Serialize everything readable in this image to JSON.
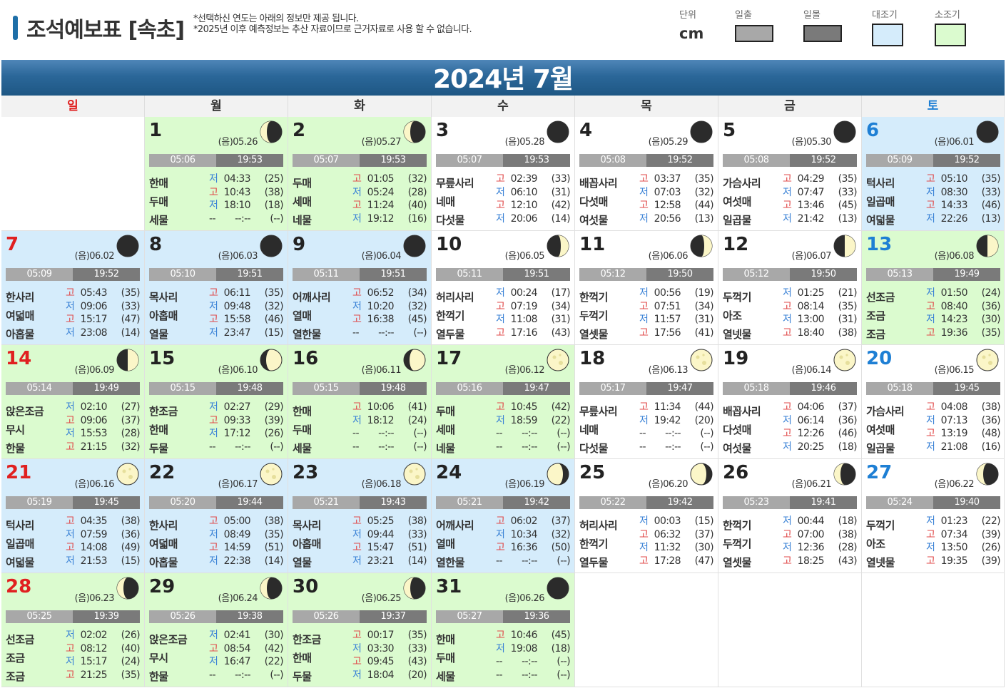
{
  "header": {
    "title": "조석예보표 [속초]",
    "notes": [
      "*선택하신 연도는 아래의 정보만 제공 됩니다.",
      "*2025년 이후 예측정보는 추산 자료이므로 근거자료로 사용 할 수 없습니다."
    ],
    "unit_label": "단위",
    "unit_value": "cm",
    "legend": {
      "sunrise": "일출",
      "sunset": "일몰",
      "spring": "대조기",
      "neap": "소조기"
    },
    "colors": {
      "sunrise": "#a8a8a8",
      "sunset": "#7a7a7a",
      "spring": "#d5ecfb",
      "neap": "#dbfbcf"
    }
  },
  "month": "2024년 7월",
  "weekdays": [
    "일",
    "월",
    "화",
    "수",
    "목",
    "금",
    "토"
  ],
  "days": [
    {
      "d": "1",
      "lunar": "(음)05.26",
      "rise": "05:06",
      "set": "19:53",
      "names": [
        "한매",
        "두매",
        "세물"
      ],
      "bg": "green",
      "moon": "thirdq",
      "tides": [
        [
          "저",
          "04:33",
          "(25)"
        ],
        [
          "고",
          "10:43",
          "(38)"
        ],
        [
          "저",
          "18:10",
          "(18)"
        ],
        [
          "--",
          "--:--",
          "(--)"
        ]
      ]
    },
    {
      "d": "2",
      "lunar": "(음)05.27",
      "rise": "05:07",
      "set": "19:53",
      "names": [
        "두매",
        "세매",
        "네물"
      ],
      "bg": "green",
      "moon": "thirdq",
      "tides": [
        [
          "고",
          "01:05",
          "(32)"
        ],
        [
          "저",
          "05:24",
          "(28)"
        ],
        [
          "고",
          "11:24",
          "(40)"
        ],
        [
          "저",
          "19:12",
          "(16)"
        ]
      ]
    },
    {
      "d": "3",
      "lunar": "(음)05.28",
      "rise": "05:07",
      "set": "19:53",
      "names": [
        "무릎사리",
        "네매",
        "다섯물"
      ],
      "bg": "white",
      "moon": "new",
      "tides": [
        [
          "고",
          "02:39",
          "(33)"
        ],
        [
          "저",
          "06:10",
          "(31)"
        ],
        [
          "고",
          "12:10",
          "(42)"
        ],
        [
          "저",
          "20:06",
          "(14)"
        ]
      ]
    },
    {
      "d": "4",
      "lunar": "(음)05.29",
      "rise": "05:08",
      "set": "19:52",
      "names": [
        "배꼽사리",
        "다섯매",
        "여섯물"
      ],
      "bg": "white",
      "moon": "new",
      "tides": [
        [
          "고",
          "03:37",
          "(35)"
        ],
        [
          "저",
          "07:03",
          "(32)"
        ],
        [
          "고",
          "12:58",
          "(44)"
        ],
        [
          "저",
          "20:56",
          "(13)"
        ]
      ]
    },
    {
      "d": "5",
      "lunar": "(음)05.30",
      "rise": "05:08",
      "set": "19:52",
      "names": [
        "가슴사리",
        "여섯매",
        "일곱물"
      ],
      "bg": "white",
      "moon": "new",
      "tides": [
        [
          "고",
          "04:29",
          "(35)"
        ],
        [
          "저",
          "07:47",
          "(33)"
        ],
        [
          "고",
          "13:46",
          "(45)"
        ],
        [
          "저",
          "21:42",
          "(13)"
        ]
      ]
    },
    {
      "d": "6",
      "lunar": "(음)06.01",
      "rise": "05:09",
      "set": "19:52",
      "names": [
        "턱사리",
        "일곱매",
        "여덟물"
      ],
      "bg": "blue",
      "moon": "new",
      "tides": [
        [
          "고",
          "05:10",
          "(35)"
        ],
        [
          "저",
          "08:30",
          "(33)"
        ],
        [
          "고",
          "14:33",
          "(46)"
        ],
        [
          "저",
          "22:26",
          "(13)"
        ]
      ]
    },
    {
      "d": "7",
      "lunar": "(음)06.02",
      "rise": "05:09",
      "set": "19:52",
      "names": [
        "한사리",
        "여덟매",
        "아홉물"
      ],
      "bg": "blue",
      "moon": "new",
      "tides": [
        [
          "고",
          "05:43",
          "(35)"
        ],
        [
          "저",
          "09:06",
          "(33)"
        ],
        [
          "고",
          "15:17",
          "(47)"
        ],
        [
          "저",
          "23:08",
          "(14)"
        ]
      ]
    },
    {
      "d": "8",
      "lunar": "(음)06.03",
      "rise": "05:10",
      "set": "19:51",
      "names": [
        "목사리",
        "아홉매",
        "열물"
      ],
      "bg": "blue",
      "moon": "new",
      "tides": [
        [
          "고",
          "06:11",
          "(35)"
        ],
        [
          "저",
          "09:48",
          "(32)"
        ],
        [
          "고",
          "15:58",
          "(46)"
        ],
        [
          "저",
          "23:47",
          "(15)"
        ]
      ]
    },
    {
      "d": "9",
      "lunar": "(음)06.04",
      "rise": "05:11",
      "set": "19:51",
      "names": [
        "어깨사리",
        "열매",
        "열한물"
      ],
      "bg": "blue",
      "moon": "new",
      "tides": [
        [
          "고",
          "06:52",
          "(34)"
        ],
        [
          "저",
          "10:20",
          "(32)"
        ],
        [
          "고",
          "16:38",
          "(45)"
        ],
        [
          "--",
          "--:--",
          "(--)"
        ]
      ]
    },
    {
      "d": "10",
      "lunar": "(음)06.05",
      "rise": "05:11",
      "set": "19:51",
      "names": [
        "허리사리",
        "한꺽기",
        "열두물"
      ],
      "bg": "white",
      "moon": "cres",
      "tides": [
        [
          "저",
          "00:24",
          "(17)"
        ],
        [
          "고",
          "07:19",
          "(34)"
        ],
        [
          "저",
          "11:08",
          "(31)"
        ],
        [
          "고",
          "17:16",
          "(43)"
        ]
      ]
    },
    {
      "d": "11",
      "lunar": "(음)06.06",
      "rise": "05:12",
      "set": "19:50",
      "names": [
        "한꺽기",
        "두꺽기",
        "열셋물"
      ],
      "bg": "white",
      "moon": "cres",
      "tides": [
        [
          "저",
          "00:56",
          "(19)"
        ],
        [
          "고",
          "07:51",
          "(34)"
        ],
        [
          "저",
          "11:57",
          "(31)"
        ],
        [
          "고",
          "17:56",
          "(41)"
        ]
      ]
    },
    {
      "d": "12",
      "lunar": "(음)06.07",
      "rise": "05:12",
      "set": "19:50",
      "names": [
        "두꺽기",
        "아조",
        "열넷물"
      ],
      "bg": "white",
      "moon": "firstq",
      "tides": [
        [
          "저",
          "01:25",
          "(21)"
        ],
        [
          "고",
          "08:14",
          "(35)"
        ],
        [
          "저",
          "13:00",
          "(31)"
        ],
        [
          "고",
          "18:40",
          "(38)"
        ]
      ]
    },
    {
      "d": "13",
      "lunar": "(음)06.08",
      "rise": "05:13",
      "set": "19:49",
      "names": [
        "선조금",
        "조금",
        "조금"
      ],
      "bg": "green",
      "moon": "firstq",
      "tides": [
        [
          "저",
          "01:50",
          "(24)"
        ],
        [
          "고",
          "08:40",
          "(36)"
        ],
        [
          "저",
          "14:23",
          "(30)"
        ],
        [
          "고",
          "19:36",
          "(35)"
        ]
      ]
    },
    {
      "d": "14",
      "lunar": "(음)06.09",
      "rise": "05:14",
      "set": "19:49",
      "names": [
        "앉은조금",
        "무시",
        "한물"
      ],
      "bg": "green",
      "moon": "firstq",
      "tides": [
        [
          "저",
          "02:10",
          "(27)"
        ],
        [
          "고",
          "09:06",
          "(37)"
        ],
        [
          "저",
          "15:53",
          "(28)"
        ],
        [
          "고",
          "21:15",
          "(32)"
        ]
      ]
    },
    {
      "d": "15",
      "lunar": "(음)06.10",
      "rise": "05:15",
      "set": "19:48",
      "names": [
        "한조금",
        "한매",
        "두물"
      ],
      "bg": "green",
      "moon": "gibb",
      "tides": [
        [
          "저",
          "02:27",
          "(29)"
        ],
        [
          "고",
          "09:33",
          "(39)"
        ],
        [
          "저",
          "17:12",
          "(26)"
        ],
        [
          "--",
          "--:--",
          "(--)"
        ]
      ]
    },
    {
      "d": "16",
      "lunar": "(음)06.11",
      "rise": "05:15",
      "set": "19:48",
      "names": [
        "한매",
        "두매",
        "세물"
      ],
      "bg": "green",
      "moon": "gibb",
      "tides": [
        [
          "고",
          "10:06",
          "(41)"
        ],
        [
          "저",
          "18:12",
          "(24)"
        ],
        [
          "--",
          "--:--",
          "(--)"
        ],
        [
          "--",
          "--:--",
          "(--)"
        ]
      ]
    },
    {
      "d": "17",
      "lunar": "(음)06.12",
      "rise": "05:16",
      "set": "19:47",
      "names": [
        "두매",
        "세매",
        "네물"
      ],
      "bg": "green",
      "moon": "full",
      "tides": [
        [
          "고",
          "10:45",
          "(42)"
        ],
        [
          "저",
          "18:59",
          "(22)"
        ],
        [
          "--",
          "--:--",
          "(--)"
        ],
        [
          "--",
          "--:--",
          "(--)"
        ]
      ]
    },
    {
      "d": "18",
      "lunar": "(음)06.13",
      "rise": "05:17",
      "set": "19:47",
      "names": [
        "무릎사리",
        "네매",
        "다섯물"
      ],
      "bg": "white",
      "moon": "full",
      "tides": [
        [
          "고",
          "11:34",
          "(44)"
        ],
        [
          "저",
          "19:42",
          "(20)"
        ],
        [
          "--",
          "--:--",
          "(--)"
        ],
        [
          "--",
          "--:--",
          "(--)"
        ]
      ]
    },
    {
      "d": "19",
      "lunar": "(음)06.14",
      "rise": "05:18",
      "set": "19:46",
      "names": [
        "배꼽사리",
        "다섯매",
        "여섯물"
      ],
      "bg": "white",
      "moon": "full",
      "tides": [
        [
          "고",
          "04:06",
          "(37)"
        ],
        [
          "저",
          "06:14",
          "(36)"
        ],
        [
          "고",
          "12:26",
          "(46)"
        ],
        [
          "저",
          "20:25",
          "(18)"
        ]
      ]
    },
    {
      "d": "20",
      "lunar": "(음)06.15",
      "rise": "05:18",
      "set": "19:45",
      "names": [
        "가슴사리",
        "여섯매",
        "일곱물"
      ],
      "bg": "white",
      "moon": "full",
      "tides": [
        [
          "고",
          "04:08",
          "(38)"
        ],
        [
          "저",
          "07:13",
          "(36)"
        ],
        [
          "고",
          "13:19",
          "(48)"
        ],
        [
          "저",
          "21:08",
          "(16)"
        ]
      ]
    },
    {
      "d": "21",
      "lunar": "(음)06.16",
      "rise": "05:19",
      "set": "19:45",
      "names": [
        "턱사리",
        "일곱매",
        "여덟물"
      ],
      "bg": "blue",
      "moon": "full",
      "tides": [
        [
          "고",
          "04:35",
          "(38)"
        ],
        [
          "저",
          "07:59",
          "(36)"
        ],
        [
          "고",
          "14:08",
          "(49)"
        ],
        [
          "저",
          "21:53",
          "(15)"
        ]
      ]
    },
    {
      "d": "22",
      "lunar": "(음)06.17",
      "rise": "05:20",
      "set": "19:44",
      "names": [
        "한사리",
        "여덟매",
        "아홉물"
      ],
      "bg": "blue",
      "moon": "full",
      "tides": [
        [
          "고",
          "05:00",
          "(38)"
        ],
        [
          "저",
          "08:49",
          "(35)"
        ],
        [
          "고",
          "14:59",
          "(51)"
        ],
        [
          "저",
          "22:38",
          "(14)"
        ]
      ]
    },
    {
      "d": "23",
      "lunar": "(음)06.18",
      "rise": "05:21",
      "set": "19:43",
      "names": [
        "목사리",
        "아홉매",
        "열물"
      ],
      "bg": "blue",
      "moon": "full",
      "tides": [
        [
          "고",
          "05:25",
          "(38)"
        ],
        [
          "저",
          "09:44",
          "(33)"
        ],
        [
          "고",
          "15:47",
          "(51)"
        ],
        [
          "저",
          "23:21",
          "(14)"
        ]
      ]
    },
    {
      "d": "24",
      "lunar": "(음)06.19",
      "rise": "05:21",
      "set": "19:42",
      "names": [
        "어깨사리",
        "열매",
        "열한물"
      ],
      "bg": "blue",
      "moon": "wgibb",
      "tides": [
        [
          "고",
          "06:02",
          "(37)"
        ],
        [
          "저",
          "10:34",
          "(32)"
        ],
        [
          "고",
          "16:36",
          "(50)"
        ],
        [
          "--",
          "--:--",
          "(--)"
        ]
      ]
    },
    {
      "d": "25",
      "lunar": "(음)06.20",
      "rise": "05:22",
      "set": "19:42",
      "names": [
        "허리사리",
        "한꺽기",
        "열두물"
      ],
      "bg": "white",
      "moon": "wgibb",
      "tides": [
        [
          "저",
          "00:03",
          "(15)"
        ],
        [
          "고",
          "06:32",
          "(37)"
        ],
        [
          "저",
          "11:32",
          "(30)"
        ],
        [
          "고",
          "17:28",
          "(47)"
        ]
      ]
    },
    {
      "d": "26",
      "lunar": "(음)06.21",
      "rise": "05:23",
      "set": "19:41",
      "names": [
        "한꺽기",
        "두꺽기",
        "열셋물"
      ],
      "bg": "white",
      "moon": "thirdq",
      "tides": [
        [
          "저",
          "00:44",
          "(18)"
        ],
        [
          "고",
          "07:00",
          "(38)"
        ],
        [
          "저",
          "12:36",
          "(28)"
        ],
        [
          "고",
          "18:25",
          "(43)"
        ]
      ]
    },
    {
      "d": "27",
      "lunar": "(음)06.22",
      "rise": "05:24",
      "set": "19:40",
      "names": [
        "두꺽기",
        "아조",
        "열넷물"
      ],
      "bg": "white",
      "moon": "thirdq",
      "tides": [
        [
          "저",
          "01:23",
          "(22)"
        ],
        [
          "고",
          "07:34",
          "(39)"
        ],
        [
          "저",
          "13:50",
          "(26)"
        ],
        [
          "고",
          "19:35",
          "(39)"
        ]
      ]
    },
    {
      "d": "28",
      "lunar": "(음)06.23",
      "rise": "05:25",
      "set": "19:39",
      "names": [
        "선조금",
        "조금",
        "조금"
      ],
      "bg": "green",
      "moon": "thirdq",
      "tides": [
        [
          "저",
          "02:02",
          "(26)"
        ],
        [
          "고",
          "08:12",
          "(40)"
        ],
        [
          "저",
          "15:17",
          "(24)"
        ],
        [
          "고",
          "21:25",
          "(35)"
        ]
      ]
    },
    {
      "d": "29",
      "lunar": "(음)06.24",
      "rise": "05:26",
      "set": "19:38",
      "names": [
        "앉은조금",
        "무시",
        "한물"
      ],
      "bg": "green",
      "moon": "thirdq",
      "tides": [
        [
          "저",
          "02:41",
          "(30)"
        ],
        [
          "고",
          "08:54",
          "(42)"
        ],
        [
          "저",
          "16:47",
          "(22)"
        ],
        [
          "--",
          "--:--",
          "(--)"
        ]
      ]
    },
    {
      "d": "30",
      "lunar": "(음)06.25",
      "rise": "05:26",
      "set": "19:37",
      "names": [
        "한조금",
        "한매",
        "두물"
      ],
      "bg": "green",
      "moon": "thirdq",
      "tides": [
        [
          "고",
          "00:17",
          "(35)"
        ],
        [
          "저",
          "03:30",
          "(33)"
        ],
        [
          "고",
          "09:45",
          "(43)"
        ],
        [
          "저",
          "18:04",
          "(20)"
        ]
      ]
    },
    {
      "d": "31",
      "lunar": "(음)06.26",
      "rise": "05:27",
      "set": "19:36",
      "names": [
        "한매",
        "두매",
        "세물"
      ],
      "bg": "green",
      "moon": "new",
      "tides": [
        [
          "고",
          "10:46",
          "(45)"
        ],
        [
          "저",
          "19:08",
          "(18)"
        ],
        [
          "--",
          "--:--",
          "(--)"
        ],
        [
          "--",
          "--:--",
          "(--)"
        ]
      ]
    }
  ]
}
